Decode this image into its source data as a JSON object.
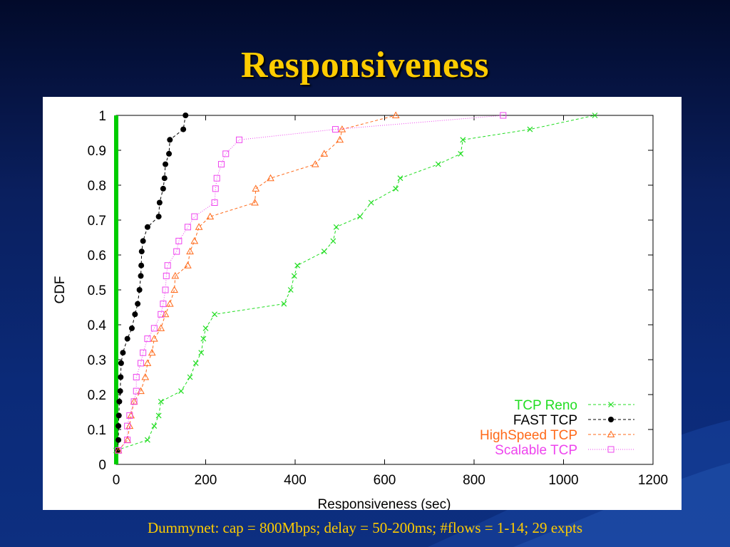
{
  "slide": {
    "title": "Responsiveness",
    "caption": "Dummynet: cap = 800Mbps; delay = 50-200ms; #flows = 1-14; 29 expts"
  },
  "chart_data": {
    "type": "line",
    "xlabel": "Responsiveness (sec)",
    "ylabel": "CDF",
    "xlim": [
      0,
      1200
    ],
    "ylim": [
      0,
      1
    ],
    "xticks": [
      0,
      200,
      400,
      600,
      800,
      1000,
      1200
    ],
    "yticks": [
      0,
      0.1,
      0.2,
      0.3,
      0.4,
      0.5,
      0.6,
      0.7,
      0.8,
      0.9,
      1
    ],
    "grid": false,
    "legend_position": "bottom-right",
    "vertical_bar": {
      "x": 0,
      "color": "#00cc00"
    },
    "series": [
      {
        "name": "TCP Reno",
        "color": "#22dd22",
        "marker": "x",
        "dash": "4,3",
        "points": [
          [
            0,
            0.04
          ],
          [
            70,
            0.07
          ],
          [
            85,
            0.11
          ],
          [
            95,
            0.14
          ],
          [
            100,
            0.18
          ],
          [
            145,
            0.21
          ],
          [
            165,
            0.25
          ],
          [
            178,
            0.29
          ],
          [
            190,
            0.32
          ],
          [
            195,
            0.36
          ],
          [
            200,
            0.39
          ],
          [
            220,
            0.43
          ],
          [
            375,
            0.46
          ],
          [
            390,
            0.5
          ],
          [
            398,
            0.54
          ],
          [
            405,
            0.57
          ],
          [
            465,
            0.61
          ],
          [
            485,
            0.64
          ],
          [
            492,
            0.68
          ],
          [
            545,
            0.71
          ],
          [
            570,
            0.75
          ],
          [
            625,
            0.79
          ],
          [
            635,
            0.82
          ],
          [
            720,
            0.86
          ],
          [
            770,
            0.89
          ],
          [
            775,
            0.93
          ],
          [
            925,
            0.96
          ],
          [
            1070,
            1.0
          ]
        ]
      },
      {
        "name": "FAST TCP",
        "color": "#000000",
        "marker": "dot",
        "dash": "4,3",
        "points": [
          [
            3,
            0.04
          ],
          [
            5,
            0.07
          ],
          [
            5,
            0.11
          ],
          [
            6,
            0.14
          ],
          [
            7,
            0.18
          ],
          [
            9,
            0.21
          ],
          [
            10,
            0.25
          ],
          [
            11,
            0.29
          ],
          [
            15,
            0.32
          ],
          [
            25,
            0.36
          ],
          [
            35,
            0.39
          ],
          [
            42,
            0.43
          ],
          [
            48,
            0.46
          ],
          [
            52,
            0.5
          ],
          [
            55,
            0.54
          ],
          [
            56,
            0.57
          ],
          [
            57,
            0.61
          ],
          [
            60,
            0.64
          ],
          [
            70,
            0.68
          ],
          [
            95,
            0.71
          ],
          [
            97,
            0.75
          ],
          [
            105,
            0.79
          ],
          [
            108,
            0.82
          ],
          [
            110,
            0.86
          ],
          [
            118,
            0.89
          ],
          [
            120,
            0.93
          ],
          [
            150,
            0.96
          ],
          [
            155,
            1.0
          ]
        ]
      },
      {
        "name": "HighSpeed TCP",
        "color": "#ff6a1a",
        "marker": "triangle",
        "dash": "4,3",
        "points": [
          [
            5,
            0.04
          ],
          [
            25,
            0.07
          ],
          [
            30,
            0.11
          ],
          [
            33,
            0.14
          ],
          [
            40,
            0.18
          ],
          [
            55,
            0.21
          ],
          [
            65,
            0.25
          ],
          [
            70,
            0.29
          ],
          [
            80,
            0.32
          ],
          [
            85,
            0.36
          ],
          [
            100,
            0.39
          ],
          [
            110,
            0.43
          ],
          [
            120,
            0.46
          ],
          [
            130,
            0.5
          ],
          [
            132,
            0.54
          ],
          [
            160,
            0.57
          ],
          [
            165,
            0.61
          ],
          [
            175,
            0.64
          ],
          [
            185,
            0.68
          ],
          [
            210,
            0.71
          ],
          [
            310,
            0.75
          ],
          [
            312,
            0.79
          ],
          [
            345,
            0.82
          ],
          [
            445,
            0.86
          ],
          [
            465,
            0.89
          ],
          [
            500,
            0.93
          ],
          [
            505,
            0.96
          ],
          [
            625,
            1.0
          ]
        ]
      },
      {
        "name": "Scalable TCP",
        "color": "#ee44ee",
        "marker": "square",
        "dash": "1,2",
        "points": [
          [
            5,
            0.04
          ],
          [
            25,
            0.07
          ],
          [
            25,
            0.11
          ],
          [
            30,
            0.14
          ],
          [
            40,
            0.18
          ],
          [
            45,
            0.21
          ],
          [
            45,
            0.25
          ],
          [
            55,
            0.29
          ],
          [
            60,
            0.32
          ],
          [
            70,
            0.36
          ],
          [
            85,
            0.39
          ],
          [
            100,
            0.43
          ],
          [
            105,
            0.46
          ],
          [
            110,
            0.5
          ],
          [
            112,
            0.54
          ],
          [
            115,
            0.57
          ],
          [
            135,
            0.61
          ],
          [
            140,
            0.64
          ],
          [
            160,
            0.68
          ],
          [
            175,
            0.71
          ],
          [
            220,
            0.75
          ],
          [
            222,
            0.79
          ],
          [
            225,
            0.82
          ],
          [
            235,
            0.86
          ],
          [
            245,
            0.89
          ],
          [
            275,
            0.93
          ],
          [
            490,
            0.96
          ],
          [
            865,
            1.0
          ]
        ]
      }
    ]
  }
}
